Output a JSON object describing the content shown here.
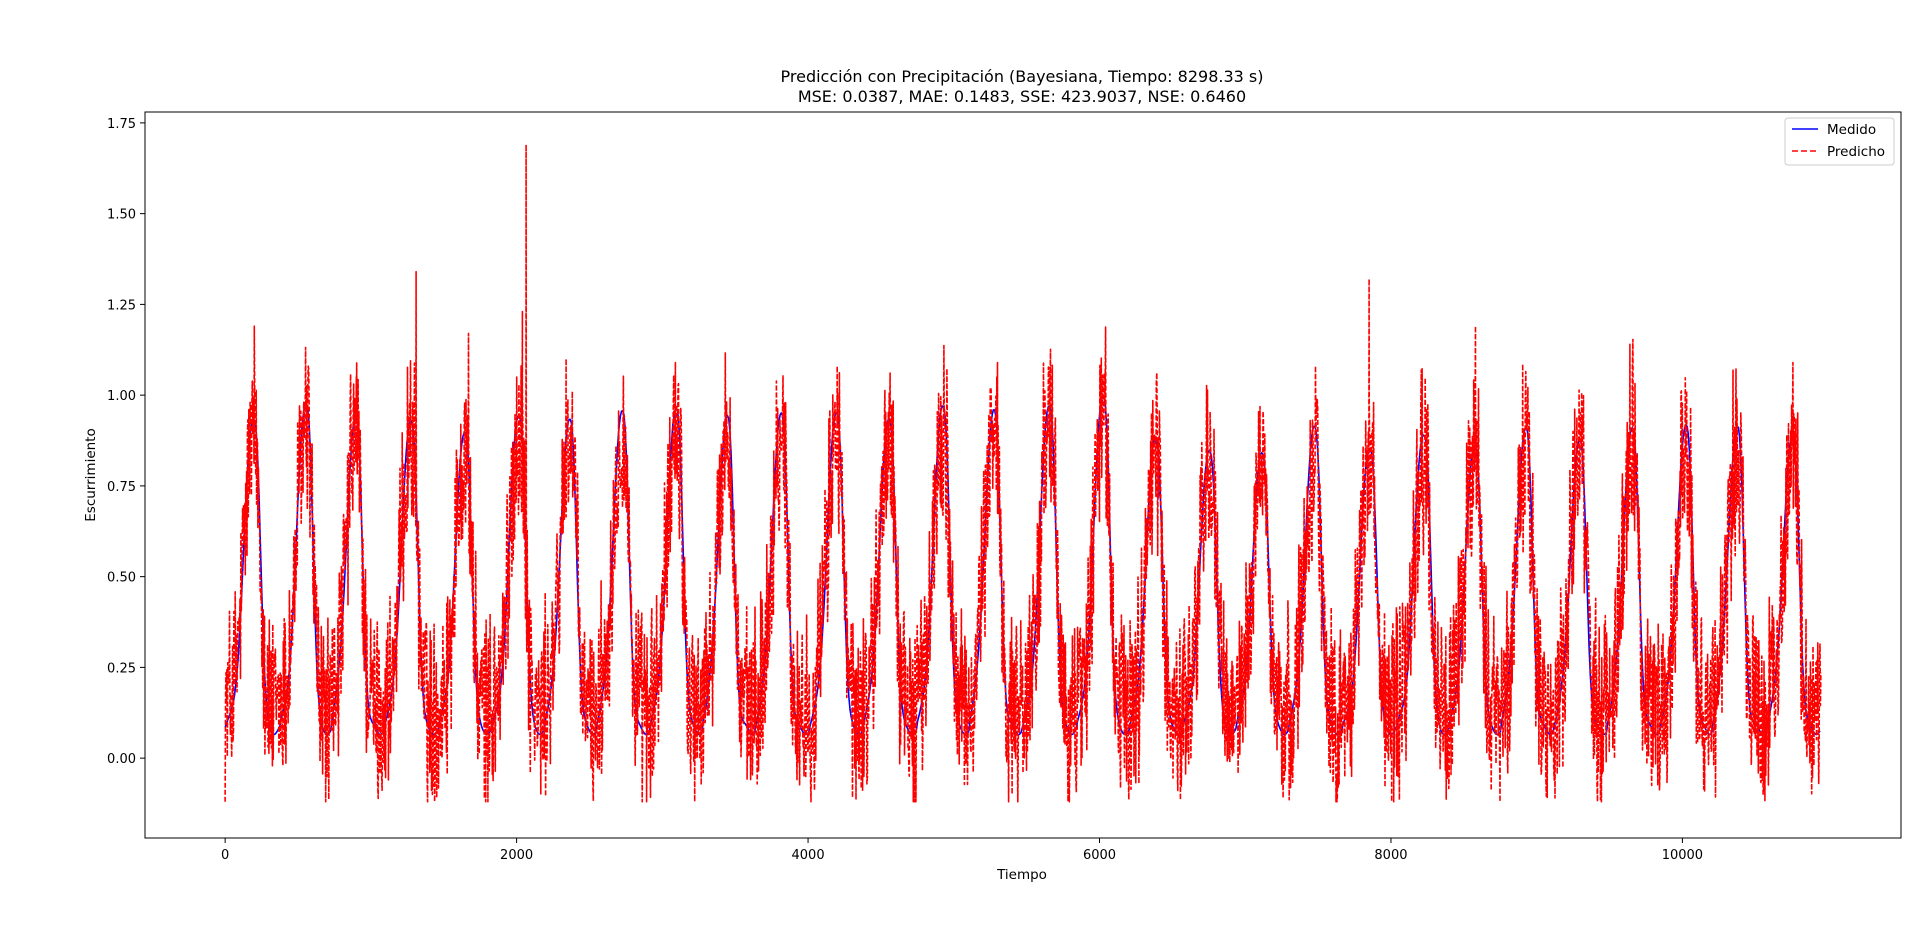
{
  "chart_data": {
    "type": "line",
    "title": "Predicción con Precipitación (Bayesiana, Tiempo: 8298.33 s)",
    "subtitle": "MSE: 0.0387, MAE: 0.1483, SSE: 423.9037, NSE: 0.6460",
    "xlabel": "Tiempo",
    "ylabel": "Escurrimiento",
    "xlim": [
      -550,
      11500
    ],
    "ylim": [
      -0.22,
      1.78
    ],
    "xticks": [
      0,
      2000,
      4000,
      6000,
      8000,
      10000
    ],
    "xtick_labels": [
      "0",
      "2000",
      "4000",
      "6000",
      "8000",
      "10000"
    ],
    "yticks": [
      0.0,
      0.25,
      0.5,
      0.75,
      1.0,
      1.25,
      1.5,
      1.75
    ],
    "ytick_labels": [
      "0.00",
      "0.25",
      "0.50",
      "0.75",
      "1.00",
      "1.25",
      "1.50",
      "1.75"
    ],
    "grid": false,
    "legend_position": "top-right",
    "x_range": [
      0,
      10950
    ],
    "series": [
      {
        "name": "Medido",
        "color": "#0000ff",
        "style": "solid",
        "cycle_length": 365,
        "trough_level": 0.08,
        "peaks": [
          {
            "x": 200,
            "y": 0.94
          },
          {
            "x": 560,
            "y": 0.98
          },
          {
            "x": 900,
            "y": 0.93
          },
          {
            "x": 1280,
            "y": 0.93
          },
          {
            "x": 1650,
            "y": 0.9
          },
          {
            "x": 2020,
            "y": 0.95
          },
          {
            "x": 2370,
            "y": 0.93
          },
          {
            "x": 2730,
            "y": 0.95
          },
          {
            "x": 3100,
            "y": 0.96
          },
          {
            "x": 3450,
            "y": 0.93
          },
          {
            "x": 3820,
            "y": 0.94
          },
          {
            "x": 4200,
            "y": 0.95
          },
          {
            "x": 4560,
            "y": 0.93
          },
          {
            "x": 4930,
            "y": 0.97
          },
          {
            "x": 5280,
            "y": 0.95
          },
          {
            "x": 5660,
            "y": 0.97
          },
          {
            "x": 6030,
            "y": 1.0
          },
          {
            "x": 6390,
            "y": 0.88
          },
          {
            "x": 6760,
            "y": 0.85
          },
          {
            "x": 7120,
            "y": 0.84
          },
          {
            "x": 7480,
            "y": 0.91
          },
          {
            "x": 7860,
            "y": 0.86
          },
          {
            "x": 8230,
            "y": 0.9
          },
          {
            "x": 8580,
            "y": 0.86
          },
          {
            "x": 8930,
            "y": 0.9
          },
          {
            "x": 9300,
            "y": 0.87
          },
          {
            "x": 9660,
            "y": 0.9
          },
          {
            "x": 10030,
            "y": 0.91
          },
          {
            "x": 10380,
            "y": 0.9
          },
          {
            "x": 10760,
            "y": 0.88
          }
        ]
      },
      {
        "name": "Predicho",
        "color": "#ff0000",
        "style": "dashed",
        "min": -0.12,
        "max": 1.69,
        "spikes": [
          {
            "x": 200,
            "y": 1.19
          },
          {
            "x": 900,
            "y": 1.05
          },
          {
            "x": 1310,
            "y": 1.34
          },
          {
            "x": 1670,
            "y": 1.17
          },
          {
            "x": 2040,
            "y": 1.23
          },
          {
            "x": 2065,
            "y": 1.69
          },
          {
            "x": 2340,
            "y": 1.1
          },
          {
            "x": 3090,
            "y": 1.09
          },
          {
            "x": 4200,
            "y": 1.08
          },
          {
            "x": 5300,
            "y": 1.09
          },
          {
            "x": 7850,
            "y": 1.32
          },
          {
            "x": 8580,
            "y": 1.19
          },
          {
            "x": 9640,
            "y": 1.14
          },
          {
            "x": 1120,
            "y": -0.06
          },
          {
            "x": 1450,
            "y": -0.02
          },
          {
            "x": 2940,
            "y": -0.03
          },
          {
            "x": 3280,
            "y": -0.04
          },
          {
            "x": 4350,
            "y": -0.06
          },
          {
            "x": 6270,
            "y": -0.07
          },
          {
            "x": 7730,
            "y": -0.05
          },
          {
            "x": 8005,
            "y": -0.12
          },
          {
            "x": 8400,
            "y": -0.03
          }
        ]
      }
    ]
  }
}
